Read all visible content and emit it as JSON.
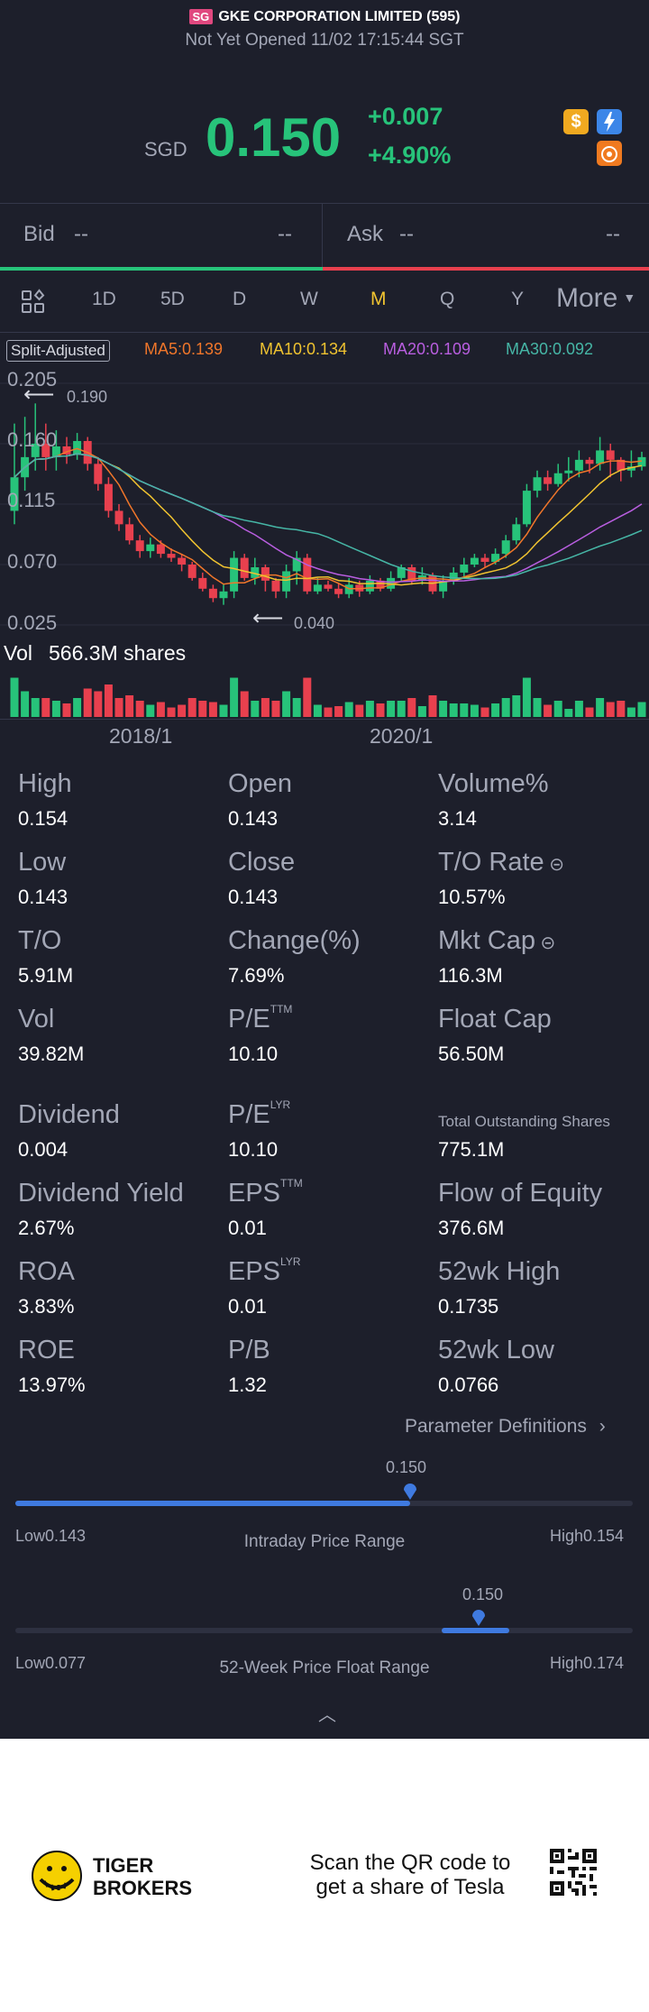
{
  "header": {
    "region": "SG",
    "name": "GKE CORPORATION LIMITED (595)",
    "status": "Not Yet Opened 11/02 17:15:44 SGT",
    "currency": "SGD",
    "price": "0.150",
    "change": "+0.007",
    "change_pct": "+4.90%"
  },
  "colors": {
    "up": "#27c37a",
    "down": "#e8404e",
    "bg": "#1d1f2b",
    "accent": "#f0c330",
    "blue": "#3f7ae0"
  },
  "quote": {
    "bid_label": "Bid",
    "bid_value": "--",
    "bid_size": "--",
    "ask_label": "Ask",
    "ask_value": "--",
    "ask_size": "--"
  },
  "tabs": [
    {
      "label": "1D"
    },
    {
      "label": "5D"
    },
    {
      "label": "D"
    },
    {
      "label": "W"
    },
    {
      "label": "M"
    },
    {
      "label": "Q"
    },
    {
      "label": "Y"
    },
    {
      "label": "More"
    }
  ],
  "active_tab": "M",
  "chart": {
    "badge": "Split-Adjusted",
    "ma5": "MA5:0.139",
    "ma10": "MA10:0.134",
    "ma20": "MA20:0.109",
    "ma30": "MA30:0.092",
    "y_ticks": [
      "0.205",
      "0.160",
      "0.115",
      "0.070",
      "0.025"
    ],
    "max_label": "0.190",
    "min_label": "0.040",
    "vol_label": "Vol",
    "vol_value": "566.3M shares",
    "x_ticks": [
      "2018/1",
      "2020/1"
    ]
  },
  "chart_data": {
    "type": "candlestick",
    "ylim": [
      0.025,
      0.205
    ],
    "y_ticks": [
      0.205,
      0.16,
      0.115,
      0.07,
      0.025
    ],
    "x_ticks": [
      "2018/1",
      "2020/1"
    ],
    "candles": [
      [
        0.11,
        0.135,
        0.175,
        0.1
      ],
      [
        0.135,
        0.15,
        0.18,
        0.125
      ],
      [
        0.15,
        0.16,
        0.19,
        0.14
      ],
      [
        0.16,
        0.15,
        0.175,
        0.14
      ],
      [
        0.15,
        0.158,
        0.17,
        0.14
      ],
      [
        0.158,
        0.152,
        0.165,
        0.145
      ],
      [
        0.152,
        0.162,
        0.168,
        0.148
      ],
      [
        0.162,
        0.145,
        0.165,
        0.14
      ],
      [
        0.145,
        0.13,
        0.15,
        0.125
      ],
      [
        0.13,
        0.11,
        0.135,
        0.105
      ],
      [
        0.11,
        0.1,
        0.115,
        0.095
      ],
      [
        0.1,
        0.088,
        0.105,
        0.085
      ],
      [
        0.088,
        0.08,
        0.092,
        0.075
      ],
      [
        0.08,
        0.085,
        0.09,
        0.075
      ],
      [
        0.085,
        0.078,
        0.088,
        0.075
      ],
      [
        0.078,
        0.075,
        0.082,
        0.072
      ],
      [
        0.075,
        0.07,
        0.078,
        0.065
      ],
      [
        0.07,
        0.06,
        0.072,
        0.058
      ],
      [
        0.06,
        0.052,
        0.064,
        0.05
      ],
      [
        0.052,
        0.045,
        0.055,
        0.042
      ],
      [
        0.045,
        0.05,
        0.055,
        0.04
      ],
      [
        0.05,
        0.075,
        0.08,
        0.045
      ],
      [
        0.075,
        0.06,
        0.078,
        0.058
      ],
      [
        0.06,
        0.068,
        0.075,
        0.055
      ],
      [
        0.068,
        0.058,
        0.07,
        0.05
      ],
      [
        0.058,
        0.05,
        0.06,
        0.045
      ],
      [
        0.05,
        0.065,
        0.07,
        0.045
      ],
      [
        0.065,
        0.075,
        0.08,
        0.055
      ],
      [
        0.075,
        0.05,
        0.078,
        0.048
      ],
      [
        0.05,
        0.055,
        0.06,
        0.048
      ],
      [
        0.055,
        0.052,
        0.058,
        0.05
      ],
      [
        0.052,
        0.048,
        0.056,
        0.045
      ],
      [
        0.048,
        0.055,
        0.06,
        0.045
      ],
      [
        0.055,
        0.05,
        0.058,
        0.046
      ],
      [
        0.05,
        0.058,
        0.062,
        0.048
      ],
      [
        0.058,
        0.052,
        0.06,
        0.05
      ],
      [
        0.052,
        0.06,
        0.065,
        0.05
      ],
      [
        0.06,
        0.068,
        0.07,
        0.058
      ],
      [
        0.068,
        0.058,
        0.07,
        0.055
      ],
      [
        0.058,
        0.062,
        0.068,
        0.055
      ],
      [
        0.062,
        0.05,
        0.064,
        0.048
      ],
      [
        0.05,
        0.058,
        0.062,
        0.045
      ],
      [
        0.058,
        0.064,
        0.068,
        0.055
      ],
      [
        0.064,
        0.07,
        0.075,
        0.06
      ],
      [
        0.07,
        0.075,
        0.078,
        0.068
      ],
      [
        0.075,
        0.072,
        0.078,
        0.068
      ],
      [
        0.072,
        0.078,
        0.082,
        0.07
      ],
      [
        0.078,
        0.088,
        0.092,
        0.075
      ],
      [
        0.088,
        0.1,
        0.105,
        0.085
      ],
      [
        0.1,
        0.125,
        0.13,
        0.098
      ],
      [
        0.125,
        0.135,
        0.14,
        0.12
      ],
      [
        0.135,
        0.13,
        0.14,
        0.125
      ],
      [
        0.13,
        0.138,
        0.145,
        0.128
      ],
      [
        0.138,
        0.14,
        0.15,
        0.132
      ],
      [
        0.14,
        0.148,
        0.155,
        0.135
      ],
      [
        0.148,
        0.145,
        0.15,
        0.138
      ],
      [
        0.145,
        0.155,
        0.165,
        0.14
      ],
      [
        0.155,
        0.148,
        0.16,
        0.135
      ],
      [
        0.148,
        0.14,
        0.15,
        0.132
      ],
      [
        0.14,
        0.143,
        0.155,
        0.135
      ],
      [
        0.143,
        0.15,
        0.154,
        0.14
      ]
    ],
    "volume_label": "Vol 566.3M shares",
    "ma": [
      "MA5:0.139",
      "MA10:0.134",
      "MA20:0.109",
      "MA30:0.092"
    ]
  },
  "stats": [
    {
      "label": "High",
      "value": "0.154"
    },
    {
      "label": "Open",
      "value": "0.143"
    },
    {
      "label": "Volume%",
      "value": "3.14"
    },
    {
      "label": "Low",
      "value": "0.143"
    },
    {
      "label": "Close",
      "value": "0.143"
    },
    {
      "label": "T/O Rate",
      "value": "10.57%"
    },
    {
      "label": "T/O",
      "value": "5.91M"
    },
    {
      "label": "Change(%)",
      "value": "7.69%"
    },
    {
      "label": "Mkt Cap",
      "value": "116.3M"
    },
    {
      "label": "Vol",
      "value": "39.82M"
    },
    {
      "label": "P/E",
      "sup": "TTM",
      "value": "10.10"
    },
    {
      "label": "Float Cap",
      "value": "56.50M"
    },
    {
      "label": "Dividend",
      "value": "0.004"
    },
    {
      "label": "P/E",
      "sup": "LYR",
      "value": "10.10"
    },
    {
      "label": "Total Outstanding Shares",
      "value": "775.1M"
    },
    {
      "label": "Dividend Yield",
      "value": "2.67%"
    },
    {
      "label": "EPS",
      "sup": "TTM",
      "value": "0.01"
    },
    {
      "label": "Flow of Equity",
      "value": "376.6M"
    },
    {
      "label": "ROA",
      "value": "3.83%"
    },
    {
      "label": "EPS",
      "sup": "LYR",
      "value": "0.01"
    },
    {
      "label": "52wk High",
      "value": "0.1735"
    },
    {
      "label": "ROE",
      "value": "13.97%"
    },
    {
      "label": "P/B",
      "value": "1.32"
    },
    {
      "label": "52wk Low",
      "value": "0.0766"
    }
  ],
  "param_link": "Parameter Definitions",
  "intraday": {
    "value": "0.150",
    "low": "Low0.143",
    "high": "High0.154",
    "title": "Intraday Price Range",
    "fraction": 0.64
  },
  "week52": {
    "value": "0.150",
    "low": "Low0.077",
    "high": "High0.174",
    "title": "52-Week Price Float Range",
    "fraction": 0.75,
    "band_start": 0.69,
    "band_end": 0.8
  },
  "footer": {
    "brand_line1": "TIGER",
    "brand_line2": "BROKERS",
    "promo_line1": "Scan the QR code to",
    "promo_line2": "get a share of Tesla"
  }
}
